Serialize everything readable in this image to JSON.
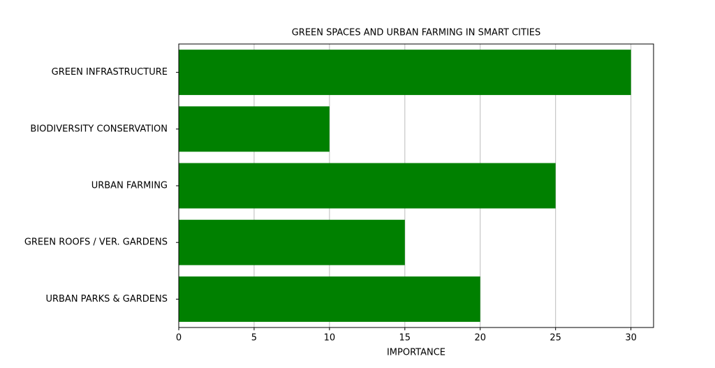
{
  "chart_data": {
    "type": "barh",
    "title": "GREEN SPACES AND URBAN FARMING IN SMART CITIES",
    "x_label": "IMPORTANCE",
    "categories": [
      "GREEN INFRASTRUCTURE",
      "BIODIVERSITY CONSERVATION",
      "URBAN FARMING",
      "GREEN ROOFS / VER. GARDENS",
      "URBAN PARKS & GARDENS"
    ],
    "values": [
      30,
      10,
      25,
      15,
      20
    ],
    "color": "#008000",
    "xlim": [
      0,
      31.5
    ],
    "xticks": [
      0,
      5,
      10,
      15,
      20,
      25,
      30
    ],
    "grid": true
  }
}
